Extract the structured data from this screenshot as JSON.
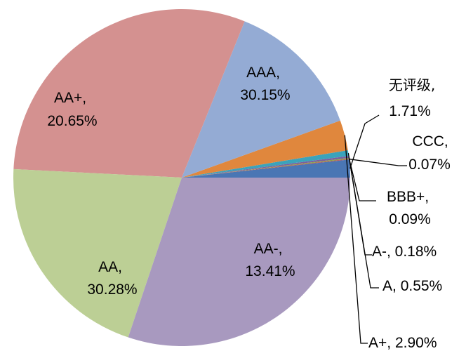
{
  "chart_data": {
    "type": "pie",
    "title": "",
    "slices": [
      {
        "label": "无评级",
        "value": 1.71,
        "text": "1.71%",
        "color": "#4a76b4"
      },
      {
        "label": "CCC",
        "value": 0.07,
        "text": "0.07%",
        "color": "#b6525a"
      },
      {
        "label": "BBB+",
        "value": 0.09,
        "text": "0.09%",
        "color": "#8aa443"
      },
      {
        "label": "A-",
        "value": 0.18,
        "text": "0.18%",
        "color": "#7a5fa0"
      },
      {
        "label": "A",
        "value": 0.55,
        "text": "0.55%",
        "color": "#3ba3bb"
      },
      {
        "label": "A+",
        "value": 2.9,
        "text": "2.90%",
        "color": "#e0873d"
      },
      {
        "label": "AA-",
        "value": 13.41,
        "text": "13.41%",
        "color": "#94abd4"
      },
      {
        "label": "AA",
        "value": 30.28,
        "text": "30.28%",
        "color": "#d49190"
      },
      {
        "label": "AA+",
        "value": 20.65,
        "text": "20.65%",
        "color": "#bccf95"
      },
      {
        "label": "AAA",
        "value": 30.15,
        "text": "30.15%",
        "color": "#a899bf"
      }
    ]
  }
}
